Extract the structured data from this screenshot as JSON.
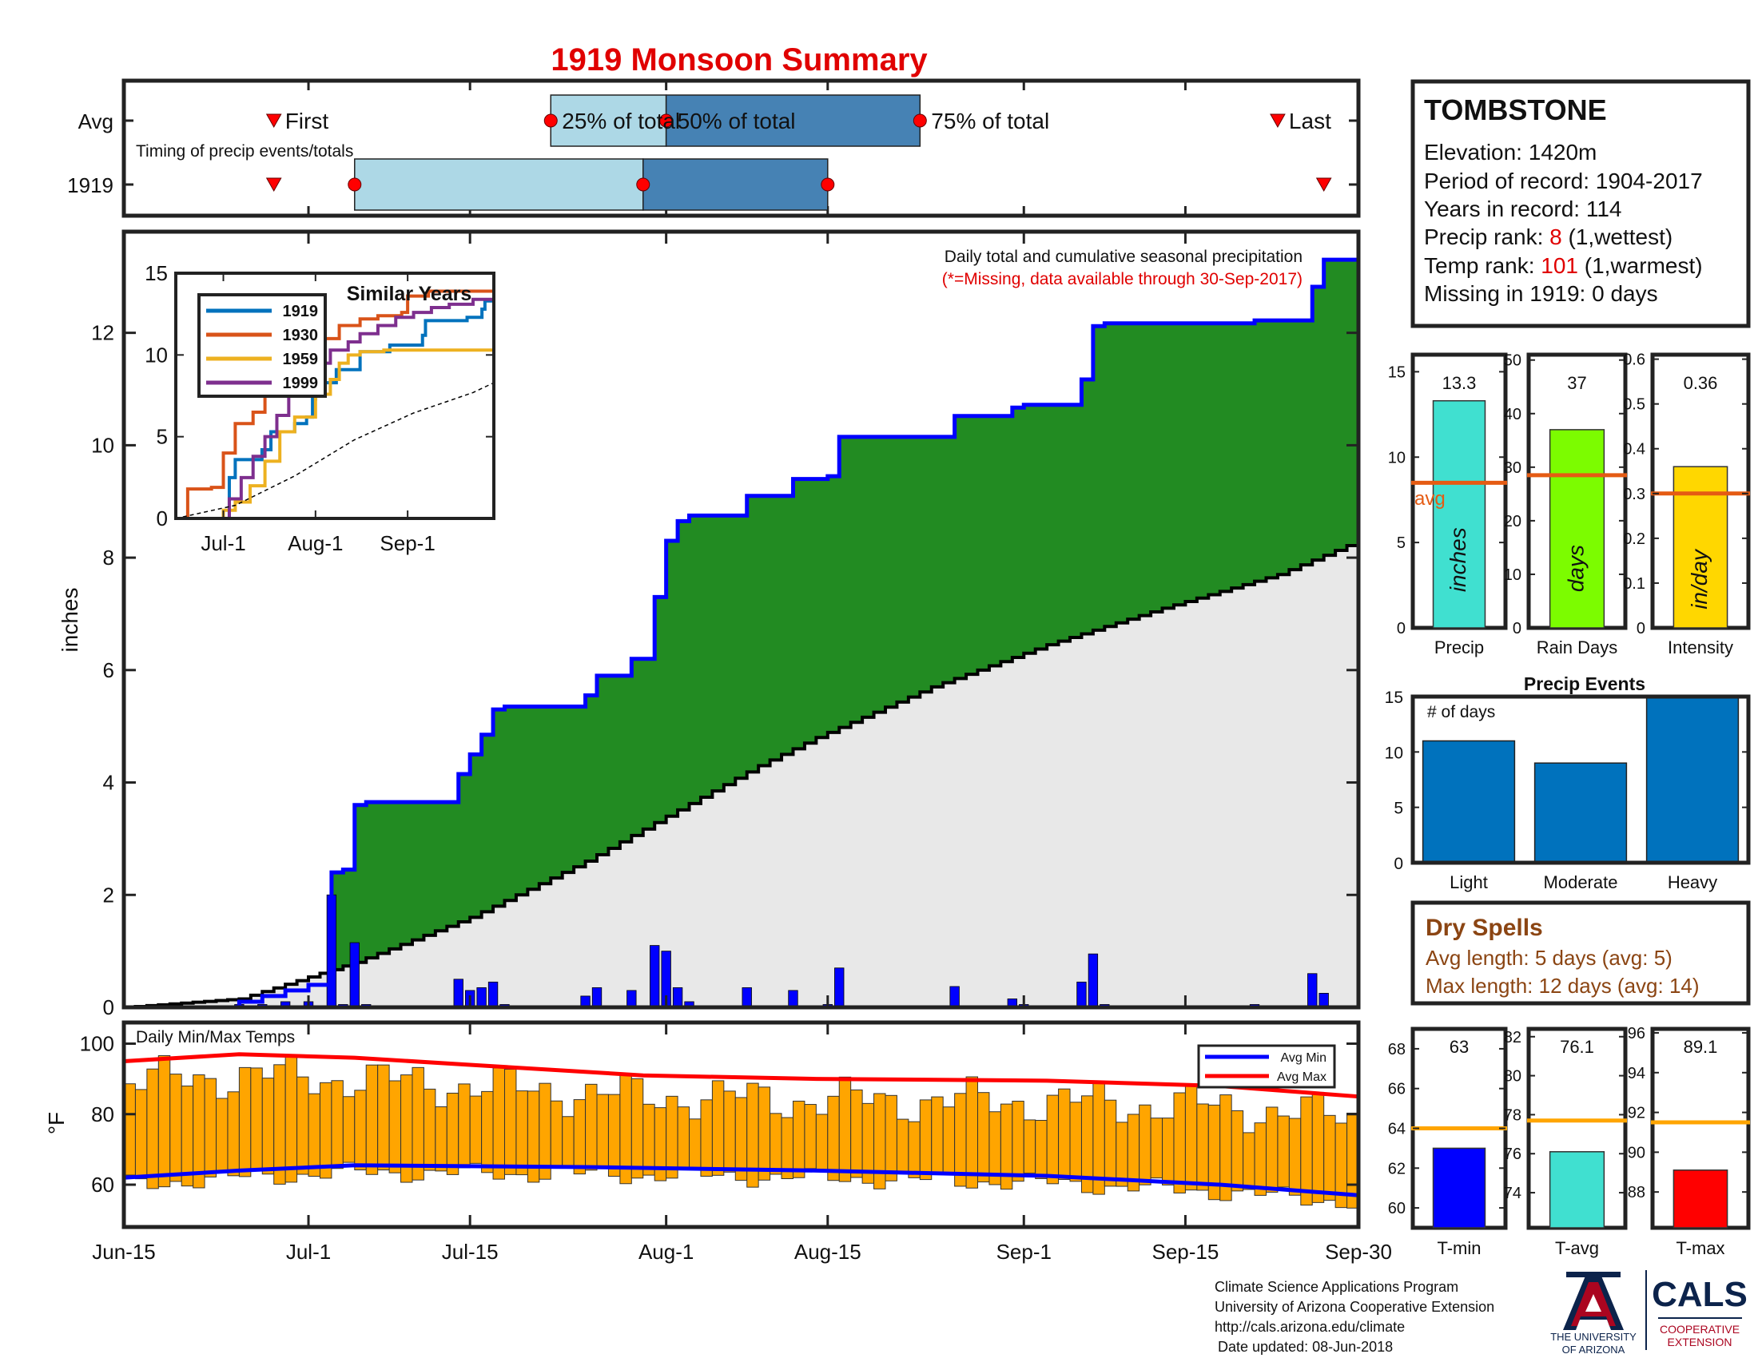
{
  "title": "1919 Monsoon Summary",
  "timing": {
    "row_labels": [
      "Avg",
      "1919"
    ],
    "caption": "Timing of precip events/totals",
    "first_label": "First",
    "last_label": "Last",
    "p25_label": "25% of total",
    "p50_label": "50% of total",
    "p75_label": "75% of total",
    "avg": {
      "first": 13,
      "p25": 37,
      "p50": 47,
      "p75": 69,
      "last": 100
    },
    "year": {
      "first": 13,
      "p25": 20,
      "p50": 45,
      "p75": 61,
      "last": 104
    },
    "colors": {
      "q1": "#add8e6",
      "q2": "#4682b4",
      "marker": "#ff0000"
    }
  },
  "station": {
    "name": "TOMBSTONE",
    "elevation": "Elevation: 1420m",
    "period": "Period of record: 1904-2017",
    "years": "Years in record: 114",
    "precip_rank_prefix": "Precip rank: ",
    "precip_rank": "8",
    "precip_rank_suffix": " (1,wettest)",
    "temp_rank_prefix": "Temp rank: ",
    "temp_rank": "101",
    "temp_rank_suffix": " (1,warmest)",
    "missing": "Missing in 1919: 0 days"
  },
  "main_chart": {
    "ylabel": "inches",
    "annotation": "Daily total and cumulative seasonal precipitation",
    "missing_note": "(*=Missing, data available through 30-Sep-2017)",
    "yticks": [
      0,
      2,
      4,
      6,
      8,
      10,
      12
    ],
    "ylim": [
      0,
      13.8
    ],
    "xticks": [
      "Jun-15",
      "Jul-1",
      "Jul-15",
      "Aug-1",
      "Aug-15",
      "Sep-1",
      "Sep-15",
      "Sep-30"
    ],
    "xtick_days": [
      0,
      16,
      30,
      47,
      61,
      78,
      92,
      107
    ],
    "colors": {
      "above_avg": "#228b22",
      "avg_fill": "#e8e8e8",
      "cumulative": "#0000ff",
      "daily": "#0000ff"
    }
  },
  "chart_data": [
    {
      "type": "area",
      "title": "Daily total and cumulative seasonal precipitation",
      "ylabel": "inches",
      "ylim": [
        0,
        13.8
      ],
      "daily_precip": [
        [
          10,
          0.05
        ],
        [
          12,
          0.05
        ],
        [
          14,
          0.1
        ],
        [
          16,
          0.1
        ],
        [
          18,
          2.0
        ],
        [
          19,
          0.05
        ],
        [
          20,
          1.15
        ],
        [
          21,
          0.05
        ],
        [
          29,
          0.5
        ],
        [
          30,
          0.3
        ],
        [
          31,
          0.35
        ],
        [
          32,
          0.45
        ],
        [
          33,
          0.05
        ],
        [
          40,
          0.2
        ],
        [
          41,
          0.35
        ],
        [
          44,
          0.3
        ],
        [
          46,
          1.1
        ],
        [
          47,
          1.0
        ],
        [
          48,
          0.35
        ],
        [
          49,
          0.1
        ],
        [
          54,
          0.35
        ],
        [
          58,
          0.3
        ],
        [
          61,
          0.05
        ],
        [
          62,
          0.7
        ],
        [
          72,
          0.37
        ],
        [
          77,
          0.15
        ],
        [
          78,
          0.05
        ],
        [
          83,
          0.45
        ],
        [
          84,
          0.95
        ],
        [
          85,
          0.05
        ],
        [
          98,
          0.05
        ],
        [
          103,
          0.6
        ],
        [
          104,
          0.25
        ]
      ],
      "cumulative_1919": [
        [
          0,
          0
        ],
        [
          10,
          0.1
        ],
        [
          12,
          0.2
        ],
        [
          14,
          0.3
        ],
        [
          16,
          0.4
        ],
        [
          18,
          2.4
        ],
        [
          19,
          2.45
        ],
        [
          20,
          3.6
        ],
        [
          21,
          3.65
        ],
        [
          29,
          4.15
        ],
        [
          30,
          4.5
        ],
        [
          31,
          4.85
        ],
        [
          32,
          5.3
        ],
        [
          33,
          5.35
        ],
        [
          40,
          5.55
        ],
        [
          41,
          5.9
        ],
        [
          44,
          6.2
        ],
        [
          46,
          7.3
        ],
        [
          47,
          8.3
        ],
        [
          48,
          8.65
        ],
        [
          49,
          8.75
        ],
        [
          54,
          9.1
        ],
        [
          58,
          9.4
        ],
        [
          61,
          9.45
        ],
        [
          62,
          10.15
        ],
        [
          72,
          10.52
        ],
        [
          77,
          10.67
        ],
        [
          78,
          10.72
        ],
        [
          83,
          11.17
        ],
        [
          84,
          12.12
        ],
        [
          85,
          12.17
        ],
        [
          98,
          12.22
        ],
        [
          103,
          12.82
        ],
        [
          104,
          13.3
        ],
        [
          107,
          13.3
        ]
      ],
      "average_cumulative": [
        [
          0,
          0
        ],
        [
          10,
          0.15
        ],
        [
          20,
          0.8
        ],
        [
          30,
          1.6
        ],
        [
          40,
          2.6
        ],
        [
          47,
          3.4
        ],
        [
          55,
          4.3
        ],
        [
          60,
          4.8
        ],
        [
          70,
          5.7
        ],
        [
          80,
          6.45
        ],
        [
          90,
          7.1
        ],
        [
          100,
          7.7
        ],
        [
          107,
          8.3
        ]
      ]
    },
    {
      "type": "line",
      "title": "Similar Years",
      "xticks": [
        "Jul-1",
        "Aug-1",
        "Sep-1"
      ],
      "xtick_days": [
        16,
        47,
        78
      ],
      "yticks": [
        0,
        5,
        10,
        15
      ],
      "ylim": [
        0,
        15
      ],
      "series": [
        {
          "name": "1919",
          "color": "#0072bd",
          "points": [
            [
              0,
              0
            ],
            [
              14,
              0
            ],
            [
              18,
              2.5
            ],
            [
              20,
              3.6
            ],
            [
              29,
              4.2
            ],
            [
              32,
              5.3
            ],
            [
              40,
              5.8
            ],
            [
              44,
              6.2
            ],
            [
              46,
              7.3
            ],
            [
              47,
              8.3
            ],
            [
              54,
              9.1
            ],
            [
              62,
              10.2
            ],
            [
              72,
              10.6
            ],
            [
              83,
              11.2
            ],
            [
              84,
              12.1
            ],
            [
              98,
              12.3
            ],
            [
              103,
              12.8
            ],
            [
              104,
              13.3
            ],
            [
              107,
              13.3
            ]
          ]
        },
        {
          "name": "1930",
          "color": "#d95319",
          "points": [
            [
              0,
              0
            ],
            [
              4,
              1.8
            ],
            [
              12,
              1.9
            ],
            [
              16,
              4.0
            ],
            [
              20,
              5.8
            ],
            [
              26,
              6.5
            ],
            [
              30,
              8.5
            ],
            [
              35,
              9.7
            ],
            [
              44,
              10.5
            ],
            [
              47,
              11.0
            ],
            [
              55,
              11.8
            ],
            [
              62,
              12.2
            ],
            [
              68,
              12.4
            ],
            [
              76,
              12.6
            ],
            [
              78,
              13.6
            ],
            [
              85,
              13.9
            ],
            [
              107,
              14.0
            ]
          ]
        },
        {
          "name": "1959",
          "color": "#edb120",
          "points": [
            [
              0,
              0
            ],
            [
              16,
              0.5
            ],
            [
              20,
              1.0
            ],
            [
              25,
              2.0
            ],
            [
              30,
              3.5
            ],
            [
              35,
              5.3
            ],
            [
              40,
              6.2
            ],
            [
              47,
              7.6
            ],
            [
              52,
              8.5
            ],
            [
              55,
              9.5
            ],
            [
              58,
              10.0
            ],
            [
              62,
              10.2
            ],
            [
              70,
              10.3
            ],
            [
              80,
              10.3
            ],
            [
              107,
              10.4
            ]
          ]
        },
        {
          "name": "1999",
          "color": "#7e2f8e",
          "points": [
            [
              0,
              0
            ],
            [
              14,
              0
            ],
            [
              18,
              1.2
            ],
            [
              22,
              2.5
            ],
            [
              26,
              3.8
            ],
            [
              30,
              5.0
            ],
            [
              34,
              6.3
            ],
            [
              38,
              7.5
            ],
            [
              42,
              8.7
            ],
            [
              46,
              9.5
            ],
            [
              52,
              10.3
            ],
            [
              58,
              10.8
            ],
            [
              62,
              11.3
            ],
            [
              68,
              11.8
            ],
            [
              74,
              12.3
            ],
            [
              80,
              12.6
            ],
            [
              86,
              12.9
            ],
            [
              92,
              13.1
            ],
            [
              100,
              13.4
            ],
            [
              107,
              13.5
            ]
          ]
        },
        {
          "points": [
            [
              0,
              0
            ],
            [
              20,
              0.8
            ],
            [
              40,
              2.6
            ],
            [
              60,
              4.8
            ],
            [
              80,
              6.45
            ],
            [
              100,
              7.7
            ],
            [
              107,
              8.3
            ]
          ]
        }
      ]
    },
    {
      "type": "bar",
      "title": "Daily Min/Max Temps",
      "ylabel": "°F",
      "yticks": [
        60,
        80,
        100
      ],
      "ylim": [
        48,
        106
      ],
      "legend": [
        "Avg Min",
        "Avg Max"
      ],
      "avg_min": [
        [
          0,
          62
        ],
        [
          10,
          64
        ],
        [
          20,
          65.5
        ],
        [
          40,
          65
        ],
        [
          60,
          64
        ],
        [
          80,
          62.5
        ],
        [
          95,
          60
        ],
        [
          107,
          57
        ]
      ],
      "avg_max": [
        [
          0,
          95
        ],
        [
          10,
          97
        ],
        [
          20,
          96
        ],
        [
          30,
          94
        ],
        [
          45,
          91
        ],
        [
          60,
          90
        ],
        [
          80,
          89.5
        ],
        [
          95,
          88
        ],
        [
          107,
          85
        ]
      ]
    },
    {
      "type": "bar",
      "categories": [
        "Precip",
        "Rain Days",
        "Intensity"
      ],
      "values": [
        13.3,
        37,
        0.36
      ],
      "value_labels": [
        "13.3",
        "37",
        "0.36"
      ],
      "unit_labels": [
        "inches",
        "days",
        "in/day"
      ],
      "averages": [
        8.5,
        28.5,
        0.3
      ],
      "avg_label": "avg",
      "ylims": [
        [
          0,
          16
        ],
        [
          0,
          51
        ],
        [
          0,
          0.61
        ]
      ],
      "yticks": [
        [
          0,
          5,
          10,
          15
        ],
        [
          0,
          10,
          20,
          30,
          40,
          50
        ],
        [
          0,
          0.1,
          0.2,
          0.3,
          0.4,
          0.5,
          0.6
        ]
      ],
      "colors": [
        "#40e0d0",
        "#7cfc00",
        "#ffd700"
      ]
    },
    {
      "type": "bar",
      "title": "Precip Events",
      "annotation": "# of days",
      "categories": [
        "Light",
        "Moderate",
        "Heavy"
      ],
      "values": [
        11,
        9,
        15
      ],
      "yticks": [
        0,
        5,
        10,
        15
      ],
      "ylim": [
        0,
        15
      ]
    },
    {
      "type": "bar",
      "categories": [
        "T-min",
        "T-avg",
        "T-max"
      ],
      "values": [
        63,
        76.1,
        89.1
      ],
      "value_labels": [
        "63",
        "76.1",
        "89.1"
      ],
      "averages": [
        64,
        77.7,
        91.5
      ],
      "ylims": [
        [
          59,
          69
        ],
        [
          72.2,
          82.4
        ],
        [
          86.2,
          96.2
        ]
      ],
      "yticks": [
        [
          60,
          62,
          64,
          66,
          68
        ],
        [
          74,
          76,
          78,
          80,
          82
        ],
        [
          88,
          90,
          92,
          94,
          96
        ]
      ],
      "colors": [
        "#0000ff",
        "#40e0d0",
        "#ff0000"
      ]
    }
  ],
  "dry_spells": {
    "title": "Dry Spells",
    "avg": "Avg length: 5 days (avg: 5)",
    "max": "Max length: 12 days (avg: 14)"
  },
  "footer": {
    "line1": "Climate Science Applications Program",
    "line2": "University of Arizona Cooperative Extension",
    "line3": "http://cals.arizona.edu/climate",
    "line4": "Date updated: 08-Jun-2018",
    "ua_line1": "THE UNIVERSITY",
    "ua_line2": "OF ARIZONA",
    "cals": "CALS",
    "coop1": "COOPERATIVE",
    "coop2": "EXTENSION"
  }
}
